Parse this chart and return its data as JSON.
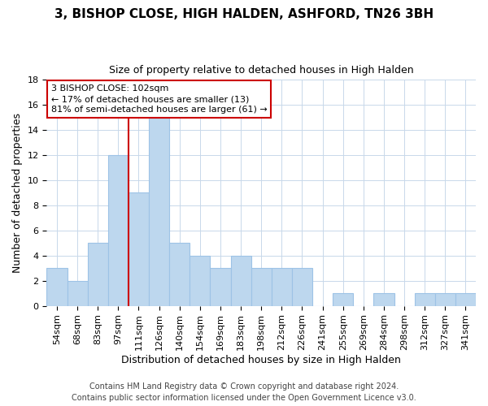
{
  "title": "3, BISHOP CLOSE, HIGH HALDEN, ASHFORD, TN26 3BH",
  "subtitle": "Size of property relative to detached houses in High Halden",
  "xlabel": "Distribution of detached houses by size in High Halden",
  "ylabel": "Number of detached properties",
  "bin_labels": [
    "54sqm",
    "68sqm",
    "83sqm",
    "97sqm",
    "111sqm",
    "126sqm",
    "140sqm",
    "154sqm",
    "169sqm",
    "183sqm",
    "198sqm",
    "212sqm",
    "226sqm",
    "241sqm",
    "255sqm",
    "269sqm",
    "284sqm",
    "298sqm",
    "312sqm",
    "327sqm",
    "341sqm"
  ],
  "bin_counts": [
    3,
    2,
    5,
    12,
    9,
    15,
    5,
    4,
    3,
    4,
    3,
    3,
    3,
    0,
    1,
    0,
    1,
    0,
    1,
    1,
    1
  ],
  "bar_color": "#bdd7ee",
  "bar_edge_color": "#9dc3e6",
  "property_line_bin": 3.5,
  "property_label": "3 BISHOP CLOSE: 102sqm",
  "pct_smaller": 17,
  "n_smaller": 13,
  "pct_larger_semi": 81,
  "n_larger_semi": 61,
  "annotation_box_color": "#ffffff",
  "annotation_box_edge_color": "#cc0000",
  "line_color": "#cc0000",
  "ylim": [
    0,
    18
  ],
  "yticks": [
    0,
    2,
    4,
    6,
    8,
    10,
    12,
    14,
    16,
    18
  ],
  "footer1": "Contains HM Land Registry data © Crown copyright and database right 2024.",
  "footer2": "Contains public sector information licensed under the Open Government Licence v3.0.",
  "background_color": "#ffffff",
  "grid_color": "#c8d8ea",
  "title_fontsize": 11,
  "subtitle_fontsize": 9,
  "xlabel_fontsize": 9,
  "ylabel_fontsize": 9,
  "tick_fontsize": 8,
  "ann_fontsize": 8,
  "footer_fontsize": 7
}
